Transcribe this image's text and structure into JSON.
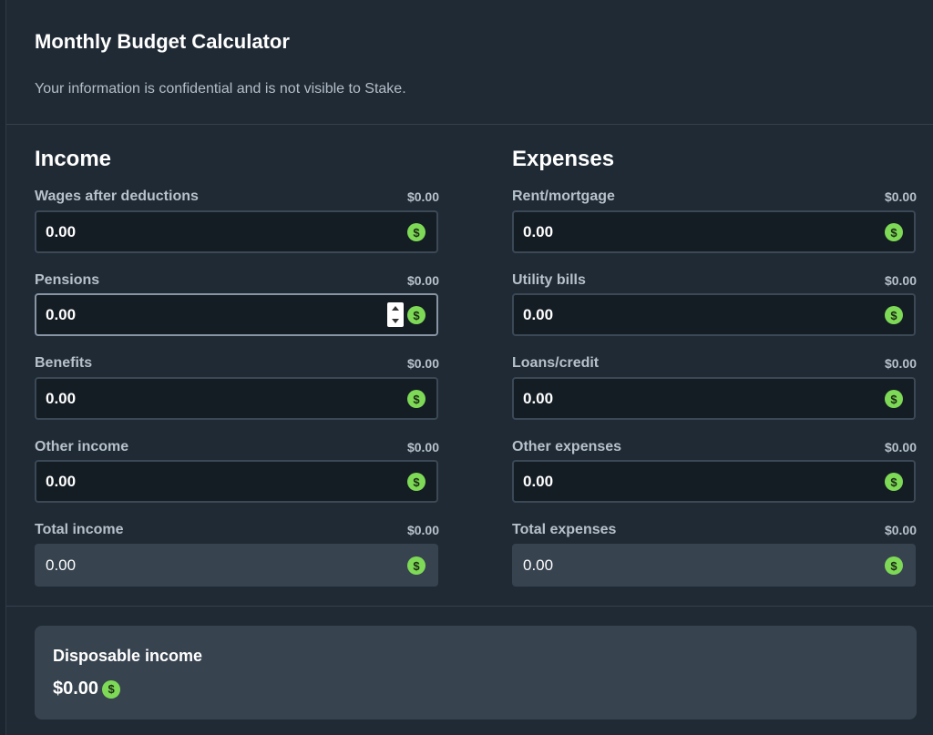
{
  "header": {
    "title": "Monthly Budget Calculator",
    "subtitle": "Your information is confidential and is not visible to Stake."
  },
  "income": {
    "title": "Income",
    "fields": [
      {
        "label": "Wages after deductions",
        "amount": "$0.00",
        "value": "0.00"
      },
      {
        "label": "Pensions",
        "amount": "$0.00",
        "value": "0.00"
      },
      {
        "label": "Benefits",
        "amount": "$0.00",
        "value": "0.00"
      },
      {
        "label": "Other income",
        "amount": "$0.00",
        "value": "0.00"
      }
    ],
    "total": {
      "label": "Total income",
      "amount": "$0.00",
      "value": "0.00"
    }
  },
  "expenses": {
    "title": "Expenses",
    "fields": [
      {
        "label": "Rent/mortgage",
        "amount": "$0.00",
        "value": "0.00"
      },
      {
        "label": "Utility bills",
        "amount": "$0.00",
        "value": "0.00"
      },
      {
        "label": "Loans/credit",
        "amount": "$0.00",
        "value": "0.00"
      },
      {
        "label": "Other expenses",
        "amount": "$0.00",
        "value": "0.00"
      }
    ],
    "total": {
      "label": "Total expenses",
      "amount": "$0.00",
      "value": "0.00"
    }
  },
  "summary": {
    "label": "Disposable income",
    "value": "$0.00"
  },
  "icons": {
    "dollar": "$"
  },
  "colors": {
    "accent_green": "#7ed957",
    "background": "#1f2a35",
    "input_bg": "#141c24",
    "total_bg": "#37434f"
  }
}
